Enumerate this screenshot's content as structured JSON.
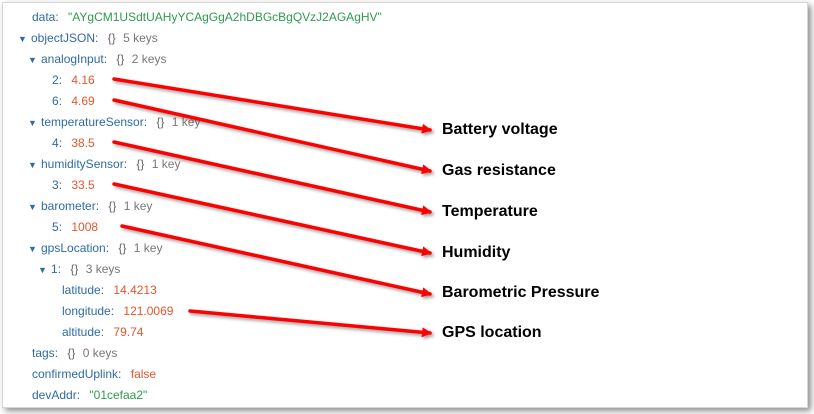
{
  "tree": {
    "data": {
      "key": "data",
      "value": "\"AYgCM1USdtUAHyYCAgGgA2hDBGcBgQVzJ2AGAgHV\""
    },
    "objectJSON": {
      "key": "objectJSON",
      "braces": "{}",
      "count": "5 keys"
    },
    "analogInput": {
      "key": "analogInput",
      "braces": "{}",
      "count": "2 keys"
    },
    "analog2": {
      "key": "2",
      "value": "4.16"
    },
    "analog6": {
      "key": "6",
      "value": "4.69"
    },
    "temperatureSensor": {
      "key": "temperatureSensor",
      "braces": "{}",
      "count": "1 key"
    },
    "temp4": {
      "key": "4",
      "value": "38.5"
    },
    "humiditySensor": {
      "key": "humiditySensor",
      "braces": "{}",
      "count": "1 key"
    },
    "hum3": {
      "key": "3",
      "value": "33.5"
    },
    "barometer": {
      "key": "barometer",
      "braces": "{}",
      "count": "1 key"
    },
    "baro5": {
      "key": "5",
      "value": "1008"
    },
    "gpsLocation": {
      "key": "gpsLocation",
      "braces": "{}",
      "count": "1 key"
    },
    "gps1": {
      "key": "1",
      "braces": "{}",
      "count": "3 keys"
    },
    "latitude": {
      "key": "latitude",
      "value": "14.4213"
    },
    "longitude": {
      "key": "longitude",
      "value": "121.0069"
    },
    "altitude": {
      "key": "altitude",
      "value": "79.74"
    },
    "tags": {
      "key": "tags",
      "braces": "{}",
      "count": "0 keys"
    },
    "confirmedUplink": {
      "key": "confirmedUplink",
      "value": "false"
    },
    "devAddr": {
      "key": "devAddr",
      "value": "\"01cefaa2\""
    }
  },
  "annotations": {
    "battery": "Battery voltage",
    "gas": "Gas resistance",
    "temperature": "Temperature",
    "humidity": "Humidity",
    "pressure": "Barometric Pressure",
    "gps": "GPS location"
  },
  "colors": {
    "key": "#2f6aa3",
    "string": "#2e9b4f",
    "number": "#e4562d",
    "arrow": "#ff0000"
  }
}
